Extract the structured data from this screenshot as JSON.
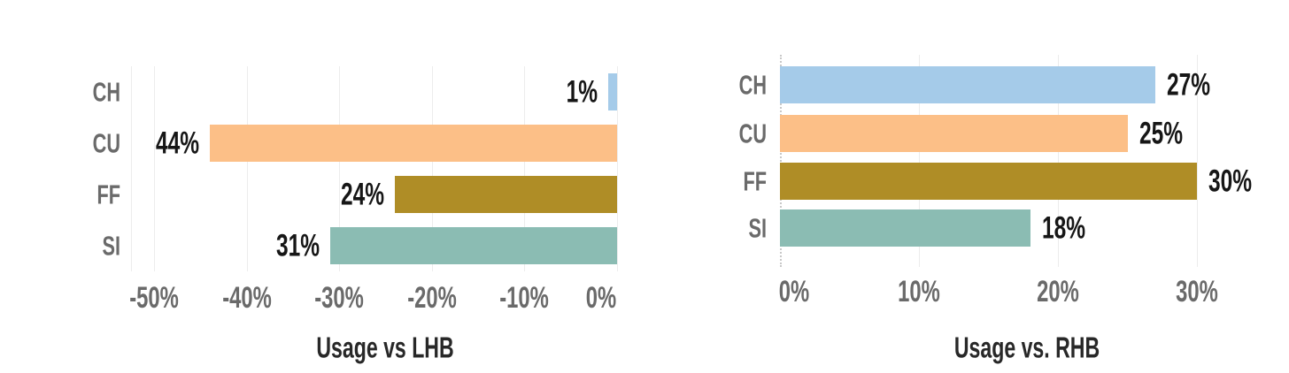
{
  "chart_data": [
    {
      "type": "bar",
      "orientation": "horizontal",
      "title": "Usage vs LHB",
      "categories": [
        "CH",
        "CU",
        "FF",
        "SI"
      ],
      "values": [
        -1,
        -44,
        -24,
        -31
      ],
      "value_labels": [
        "1%",
        "44%",
        "24%",
        "31%"
      ],
      "bar_colors": [
        "#a5cbe9",
        "#fcbf87",
        "#af8d26",
        "#8bbcb3"
      ],
      "x_tick_values": [
        -50,
        -40,
        -30,
        -20,
        -10,
        0
      ],
      "x_tick_labels": [
        "-50%",
        "-40%",
        "-30%",
        "-20%",
        "-10%",
        "0%"
      ],
      "xlim": [
        -52.5,
        0
      ],
      "grid": "vertical-gridlines-on",
      "legend": "none",
      "value_label_position": "outside-left-of-bar",
      "bars_anchored_at": "zero-at-right-edge"
    },
    {
      "type": "bar",
      "orientation": "horizontal",
      "title": "Usage vs. RHB",
      "categories": [
        "CH",
        "CU",
        "FF",
        "SI"
      ],
      "values": [
        27,
        25,
        30,
        18
      ],
      "value_labels": [
        "27%",
        "25%",
        "30%",
        "18%"
      ],
      "bar_colors": [
        "#a5cbe9",
        "#fcbf87",
        "#af8d26",
        "#8bbcb3"
      ],
      "x_tick_values": [
        0,
        10,
        20,
        30
      ],
      "x_tick_labels": [
        "0%",
        "10%",
        "20%",
        "30%"
      ],
      "xlim": [
        0,
        35.4
      ],
      "grid": "vertical-gridlines-on",
      "legend": "none",
      "value_label_position": "outside-right-of-bar",
      "bars_anchored_at": "zero-at-left-edge-dotted-baseline"
    }
  ],
  "style": {
    "gridline_color": "#ececec",
    "zero_baseline_color": "#c9c9c9",
    "category_text_color": "#6a6a6a",
    "tick_text_color": "#6a6a6a",
    "value_text_color": "#161616",
    "title_text_color": "#282828",
    "background_color": "#ffffff"
  }
}
